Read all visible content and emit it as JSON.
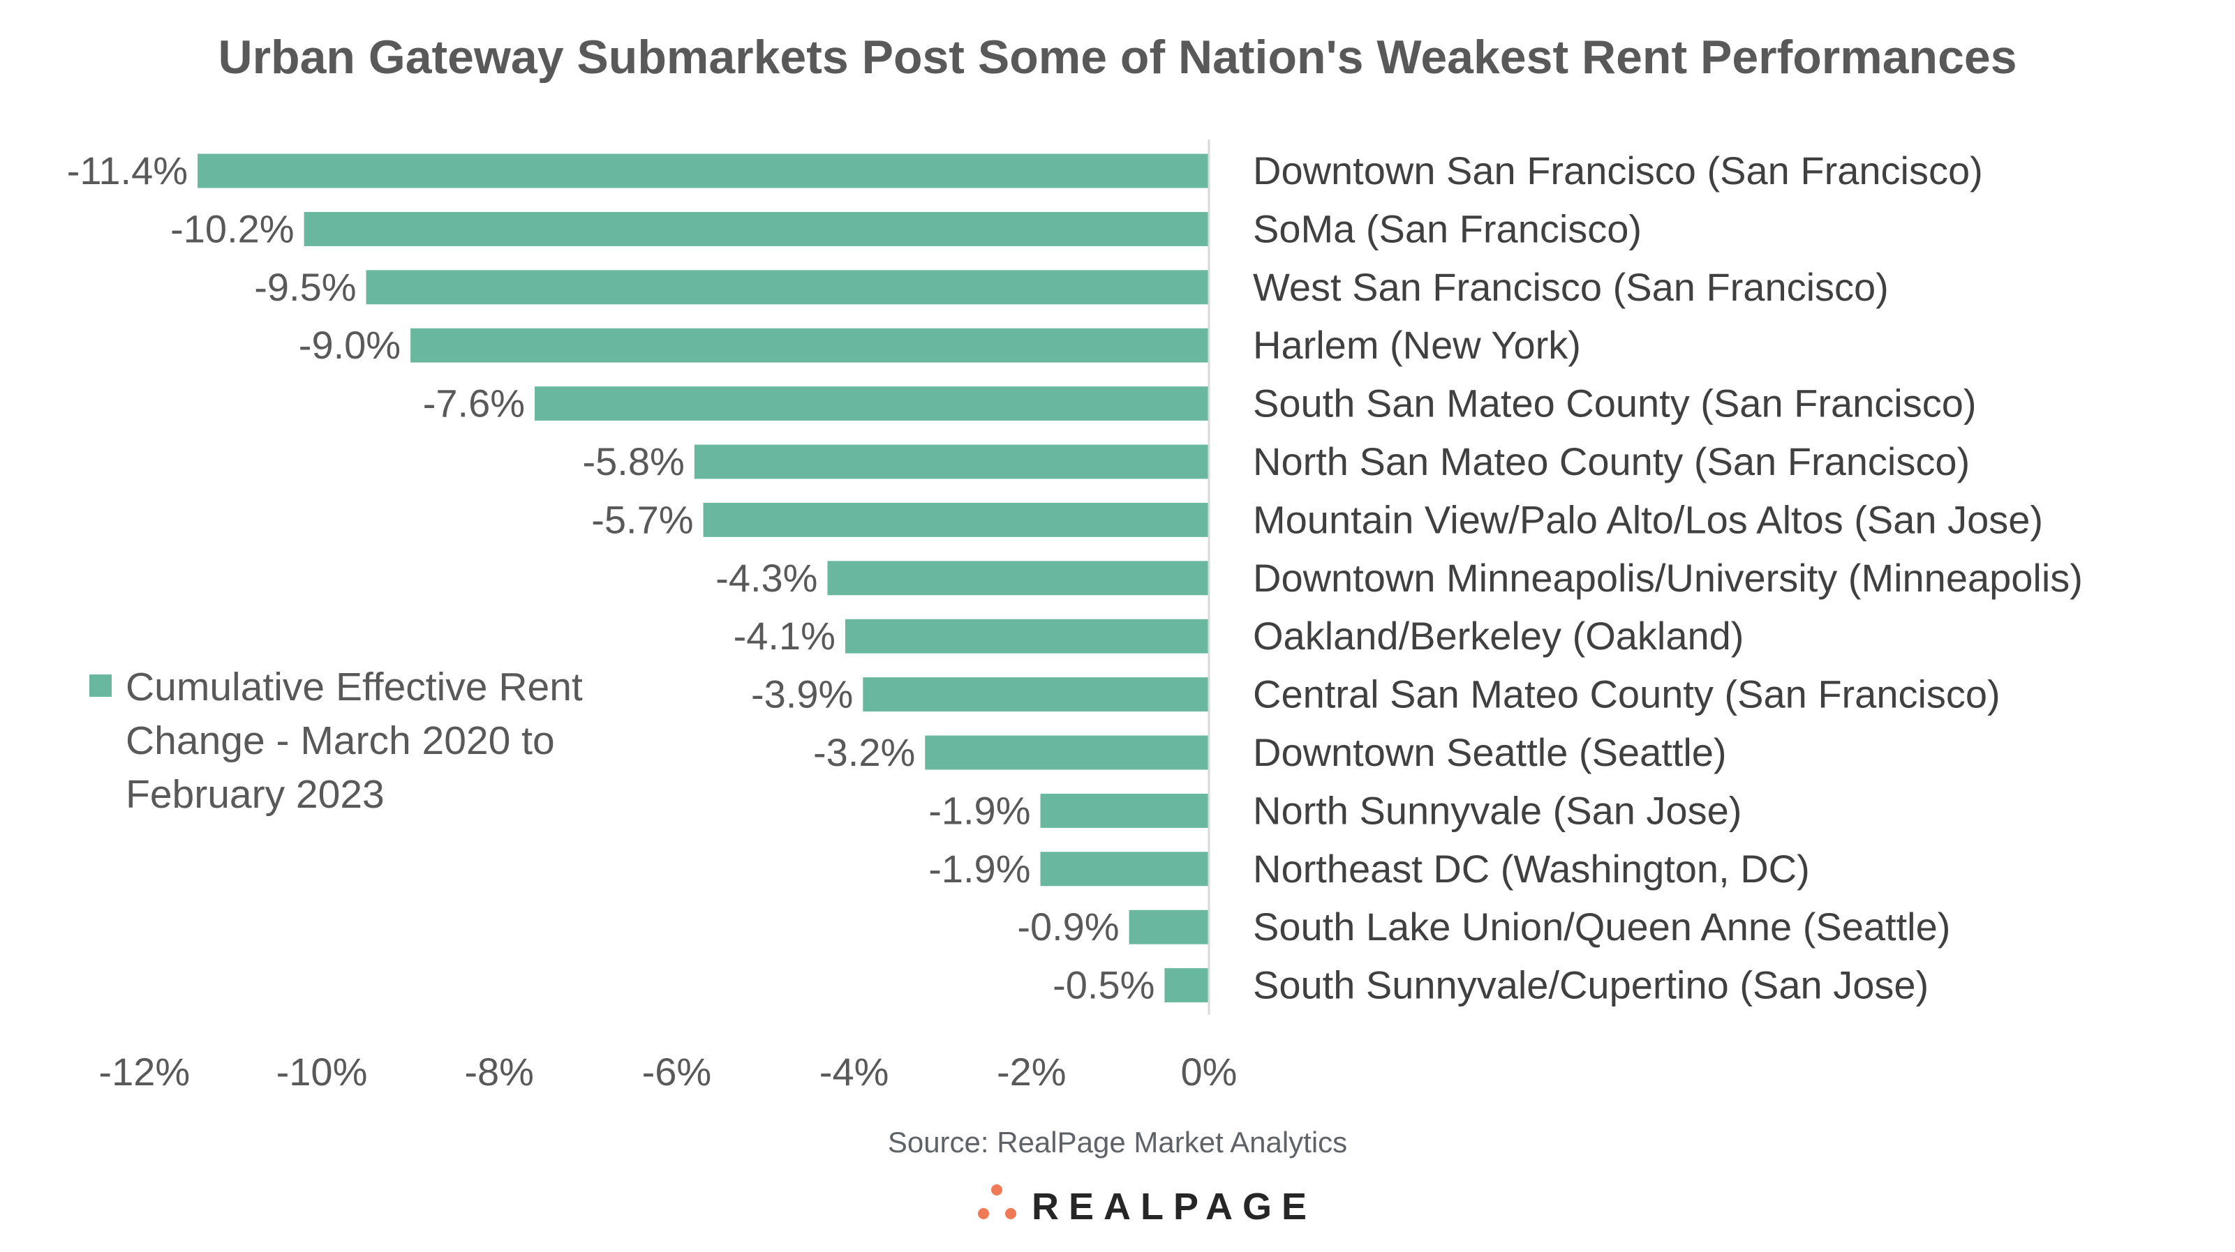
{
  "chart_data": {
    "type": "bar",
    "orientation": "horizontal",
    "title": "Urban Gateway Submarkets Post Some of Nation's Weakest Rent Performances",
    "categories": [
      "Downtown San Francisco (San Francisco)",
      "SoMa (San Francisco)",
      "West San Francisco (San Francisco)",
      "Harlem (New York)",
      "South San Mateo County (San Francisco)",
      "North San Mateo County (San Francisco)",
      "Mountain View/Palo Alto/Los Altos (San Jose)",
      "Downtown Minneapolis/University (Minneapolis)",
      "Oakland/Berkeley (Oakland)",
      "Central San Mateo County (San Francisco)",
      "Downtown Seattle (Seattle)",
      "North Sunnyvale (San Jose)",
      "Northeast DC (Washington, DC)",
      "South Lake Union/Queen Anne (Seattle)",
      "South Sunnyvale/Cupertino (San Jose)"
    ],
    "series": [
      {
        "name": "Cumulative Effective Rent Change - March 2020 to February 2023",
        "values": [
          -11.4,
          -10.2,
          -9.5,
          -9.0,
          -7.6,
          -5.8,
          -5.7,
          -4.3,
          -4.1,
          -3.9,
          -3.2,
          -1.9,
          -1.9,
          -0.9,
          -0.5
        ],
        "data_labels": [
          "-11.4%",
          "-10.2%",
          "-9.5%",
          "-9.0%",
          "-7.6%",
          "-5.8%",
          "-5.7%",
          "-4.3%",
          "-4.1%",
          "-3.9%",
          "-3.2%",
          "-1.9%",
          "-1.9%",
          "-0.9%",
          "-0.5%"
        ],
        "color": "#69b79f"
      }
    ],
    "xlim": [
      -12,
      0
    ],
    "x_ticks": [
      -12,
      -10,
      -8,
      -6,
      -4,
      -2,
      0
    ],
    "x_tick_labels": [
      "-12%",
      "-10%",
      "-8%",
      "-6%",
      "-4%",
      "-2%",
      "0%"
    ],
    "legend_lines": [
      "Cumulative Effective Rent",
      "Change - March 2020 to",
      "February 2023"
    ],
    "legend_position": "left",
    "grid": false,
    "xlabel": "",
    "ylabel": ""
  },
  "source": "Source: RealPage Market Analytics",
  "logo": {
    "text": "REALPAGE",
    "dot_color": "#ef7a55"
  }
}
